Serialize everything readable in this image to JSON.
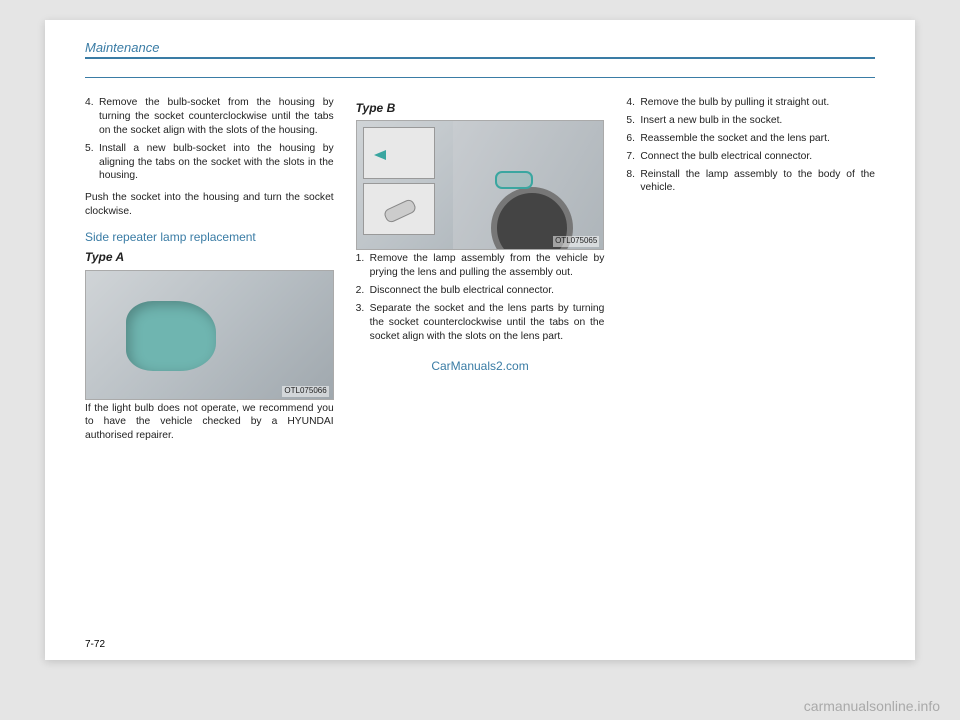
{
  "header": "Maintenance",
  "col1": {
    "steps_a": [
      {
        "n": "4.",
        "t": "Remove the bulb-socket from the housing by turning the socket counterclockwise until the tabs on the socket align with the slots of the housing."
      },
      {
        "n": "5.",
        "t": "Install a new bulb-socket into the housing by aligning the tabs on the socket with the slots in the housing."
      }
    ],
    "indent_a": "Push the socket into the housing and turn the socket clockwise.",
    "subhead": "Side repeater lamp replacement",
    "type_a_label": "Type A",
    "fig_a_code": "OTL075066",
    "caption_a": "If the light bulb does not operate, we recommend you to have the vehicle checked by a HYUNDAI authorised repairer."
  },
  "col2": {
    "type_b_label": "Type B",
    "fig_b_code": "OTL075065",
    "steps_b": [
      {
        "n": "1.",
        "t": "Remove the lamp assembly from the vehicle by prying the lens and pulling the assembly out."
      },
      {
        "n": "2.",
        "t": "Disconnect the bulb electrical connector."
      },
      {
        "n": "3.",
        "t": "Separate the socket and the lens parts by turning the socket counterclockwise until the tabs on the socket align with the slots on the lens part."
      }
    ],
    "watermark": "CarManuals2.com"
  },
  "col3": {
    "steps_c": [
      {
        "n": "4.",
        "t": "Remove the bulb by pulling it straight out."
      },
      {
        "n": "5.",
        "t": "Insert a new bulb in the socket."
      },
      {
        "n": "6.",
        "t": "Reassemble the socket and the lens part."
      },
      {
        "n": "7.",
        "t": "Connect the bulb electrical connector."
      },
      {
        "n": "8.",
        "t": "Reinstall the lamp assembly to the body of the vehicle."
      }
    ]
  },
  "pagenum": "7-72",
  "br_watermark": "carmanualsonline.info",
  "colors": {
    "accent": "#3a7ca5",
    "teal": "#6fb5b0",
    "page_bg": "#ffffff",
    "body_bg": "#e5e5e5"
  }
}
